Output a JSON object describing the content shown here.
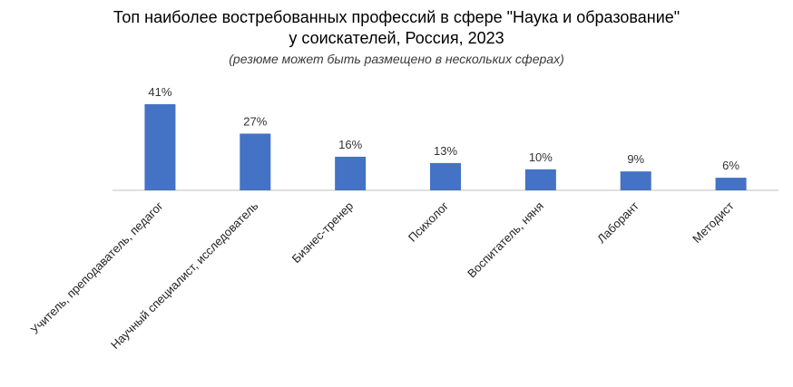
{
  "chart_data": {
    "type": "bar",
    "title_line1": "Топ наиболее востребованных профессий в сфере \"Наука и образование\"",
    "title_line2": "у соискателей, Россия, 2023",
    "subtitle": "(резюме может быть размещено в нескольких сферах)",
    "categories": [
      "Учитель, преподаватель, педагог",
      "Научный специалист, исследователь",
      "Бизнес-тренер",
      "Психолог",
      "Воспитатель, няня",
      "Лаборант",
      "Методист"
    ],
    "values": [
      41,
      27,
      16,
      13,
      10,
      9,
      6
    ],
    "value_labels": [
      "41%",
      "27%",
      "16%",
      "13%",
      "10%",
      "9%",
      "6%"
    ],
    "bar_color": "#4472c4",
    "axis_color": "#bfbfbf",
    "ylim": [
      0,
      41
    ],
    "grid": false,
    "legend": "none",
    "xlabel": "",
    "ylabel": ""
  }
}
